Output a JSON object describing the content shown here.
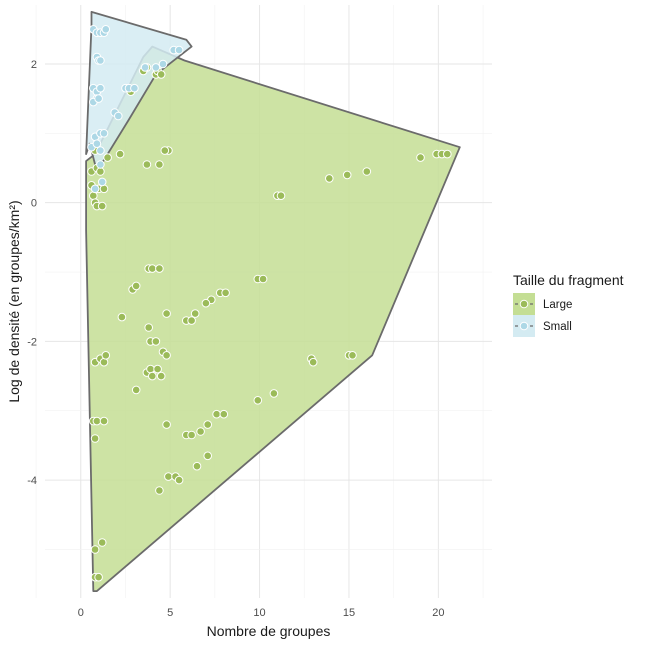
{
  "chart_data": {
    "type": "scatter",
    "title": "",
    "xlabel": "Nombre de groupes",
    "ylabel": "Log de densité (en groupes/km²)",
    "xlim": [
      -2.0,
      23.0
    ],
    "ylim": [
      -5.7,
      2.85
    ],
    "x_ticks": [
      0,
      5,
      10,
      15,
      20
    ],
    "y_ticks": [
      -4,
      -2,
      0,
      2
    ],
    "grid": true,
    "legend": {
      "title": "Taille du fragment",
      "position": "right"
    },
    "series": [
      {
        "name": "Large",
        "color": "#9bbb59",
        "hull_fill": "#c4de94",
        "hull": [
          [
            0.7,
            -5.6
          ],
          [
            0.9,
            -5.6
          ],
          [
            16.3,
            -2.2
          ],
          [
            21.2,
            0.8
          ],
          [
            5.8,
            2.05
          ],
          [
            4.0,
            2.25
          ],
          [
            3.5,
            2.1
          ],
          [
            0.8,
            0.7
          ],
          [
            0.3,
            0.6
          ],
          [
            0.3,
            -0.4
          ]
        ],
        "points": [
          [
            0.6,
            0.45
          ],
          [
            0.6,
            0.25
          ],
          [
            0.7,
            0.1
          ],
          [
            0.8,
            0.0
          ],
          [
            0.9,
            -0.05
          ],
          [
            1.0,
            0.2
          ],
          [
            1.2,
            -0.05
          ],
          [
            1.3,
            0.2
          ],
          [
            0.8,
            0.75
          ],
          [
            0.9,
            0.5
          ],
          [
            1.1,
            0.45
          ],
          [
            1.5,
            0.65
          ],
          [
            2.2,
            0.7
          ],
          [
            3.5,
            1.9
          ],
          [
            3.7,
            1.95
          ],
          [
            4.2,
            1.85
          ],
          [
            4.3,
            1.9
          ],
          [
            4.5,
            1.85
          ],
          [
            4.9,
            0.75
          ],
          [
            4.7,
            0.75
          ],
          [
            3.7,
            0.55
          ],
          [
            4.4,
            0.55
          ],
          [
            2.7,
            1.65
          ],
          [
            2.8,
            1.6
          ],
          [
            11.0,
            0.1
          ],
          [
            11.2,
            0.1
          ],
          [
            13.9,
            0.35
          ],
          [
            14.9,
            0.4
          ],
          [
            16.0,
            0.45
          ],
          [
            19.0,
            0.65
          ],
          [
            19.9,
            0.7
          ],
          [
            20.2,
            0.7
          ],
          [
            20.5,
            0.7
          ],
          [
            3.8,
            -0.95
          ],
          [
            4.0,
            -0.95
          ],
          [
            4.4,
            -0.95
          ],
          [
            9.9,
            -1.1
          ],
          [
            10.2,
            -1.1
          ],
          [
            2.9,
            -1.25
          ],
          [
            3.1,
            -1.2
          ],
          [
            7.3,
            -1.4
          ],
          [
            7.0,
            -1.45
          ],
          [
            7.8,
            -1.3
          ],
          [
            8.1,
            -1.3
          ],
          [
            2.3,
            -1.65
          ],
          [
            4.8,
            -1.6
          ],
          [
            5.9,
            -1.7
          ],
          [
            6.2,
            -1.7
          ],
          [
            6.4,
            -1.6
          ],
          [
            3.8,
            -1.8
          ],
          [
            3.9,
            -2.0
          ],
          [
            4.2,
            -2.0
          ],
          [
            4.6,
            -2.15
          ],
          [
            4.8,
            -2.2
          ],
          [
            12.9,
            -2.25
          ],
          [
            13.0,
            -2.3
          ],
          [
            15.0,
            -2.2
          ],
          [
            15.2,
            -2.2
          ],
          [
            0.8,
            -2.3
          ],
          [
            1.1,
            -2.25
          ],
          [
            1.3,
            -2.3
          ],
          [
            1.4,
            -2.2
          ],
          [
            3.7,
            -2.45
          ],
          [
            3.9,
            -2.4
          ],
          [
            4.0,
            -2.5
          ],
          [
            4.3,
            -2.4
          ],
          [
            4.5,
            -2.5
          ],
          [
            3.1,
            -2.7
          ],
          [
            10.8,
            -2.75
          ],
          [
            9.9,
            -2.85
          ],
          [
            7.6,
            -3.05
          ],
          [
            8.0,
            -3.05
          ],
          [
            0.7,
            -3.15
          ],
          [
            0.9,
            -3.15
          ],
          [
            1.3,
            -3.15
          ],
          [
            4.8,
            -3.2
          ],
          [
            7.1,
            -3.2
          ],
          [
            5.9,
            -3.35
          ],
          [
            6.2,
            -3.35
          ],
          [
            6.7,
            -3.3
          ],
          [
            0.8,
            -3.4
          ],
          [
            7.1,
            -3.65
          ],
          [
            6.5,
            -3.8
          ],
          [
            4.9,
            -3.95
          ],
          [
            5.3,
            -3.95
          ],
          [
            5.5,
            -4.0
          ],
          [
            4.4,
            -4.15
          ],
          [
            1.2,
            -4.9
          ],
          [
            0.8,
            -5.0
          ],
          [
            0.8,
            -5.4
          ],
          [
            1.0,
            -5.4
          ]
        ]
      },
      {
        "name": "Small",
        "color": "#add8e6",
        "hull_fill": "#d4ebf2",
        "hull": [
          [
            0.3,
            0.7
          ],
          [
            0.5,
            0.85
          ],
          [
            0.9,
            0.45
          ],
          [
            2.7,
            1.2
          ],
          [
            4.2,
            1.85
          ],
          [
            6.2,
            2.25
          ],
          [
            5.9,
            2.35
          ],
          [
            0.6,
            2.75
          ],
          [
            0.6,
            2.55
          ]
        ],
        "points": [
          [
            0.7,
            2.5
          ],
          [
            0.9,
            2.45
          ],
          [
            1.1,
            2.45
          ],
          [
            1.3,
            2.45
          ],
          [
            1.4,
            2.5
          ],
          [
            0.9,
            2.1
          ],
          [
            1.0,
            2.05
          ],
          [
            1.1,
            2.05
          ],
          [
            0.7,
            1.65
          ],
          [
            0.9,
            1.6
          ],
          [
            1.1,
            1.65
          ],
          [
            0.9,
            1.5
          ],
          [
            0.7,
            1.45
          ],
          [
            1.0,
            1.5
          ],
          [
            1.9,
            1.3
          ],
          [
            2.1,
            1.25
          ],
          [
            0.8,
            0.95
          ],
          [
            1.1,
            1.0
          ],
          [
            1.3,
            1.0
          ],
          [
            0.6,
            0.8
          ],
          [
            0.9,
            0.85
          ],
          [
            1.1,
            0.75
          ],
          [
            1.1,
            0.55
          ],
          [
            1.2,
            0.3
          ],
          [
            0.8,
            0.2
          ],
          [
            2.5,
            1.65
          ],
          [
            2.7,
            1.65
          ],
          [
            3.0,
            1.65
          ],
          [
            3.6,
            1.95
          ],
          [
            4.2,
            1.95
          ],
          [
            4.6,
            2.0
          ],
          [
            5.2,
            2.2
          ],
          [
            5.5,
            2.2
          ]
        ]
      }
    ]
  }
}
